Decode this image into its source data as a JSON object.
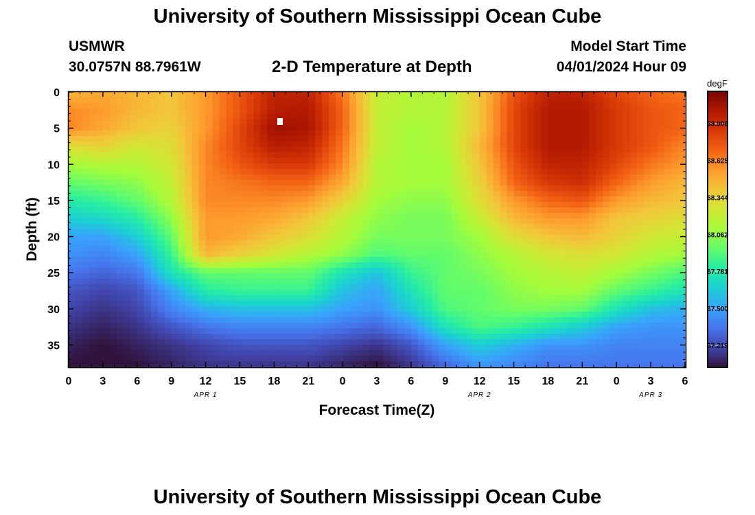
{
  "header": {
    "title": "University of Southern Mississippi Ocean Cube",
    "station_id": "USMWR",
    "coordinates": "30.0757N  88.7961W",
    "plot_title": "2-D Temperature at Depth",
    "model_start_label": "Model Start Time",
    "model_start_value": "04/01/2024 Hour 09"
  },
  "footer": {
    "title": "University of Southern Mississippi Ocean Cube"
  },
  "chart_data": {
    "type": "heatmap",
    "title": "2-D Temperature at Depth",
    "xlabel": "Forecast Time(Z)",
    "ylabel": "Depth (ft)",
    "x_unit": "hours from 04/01/2024 00Z",
    "xlim": [
      0,
      54
    ],
    "ylim": [
      0,
      38
    ],
    "x_ticks": [
      0,
      3,
      6,
      9,
      12,
      15,
      18,
      21,
      24,
      27,
      30,
      33,
      36,
      39,
      42,
      45,
      48,
      51,
      54
    ],
    "x_tick_labels": [
      "0",
      "3",
      "6",
      "9",
      "12",
      "15",
      "18",
      "21",
      "0",
      "3",
      "6",
      "9",
      "12",
      "15",
      "18",
      "21",
      "0",
      "3",
      "6"
    ],
    "y_ticks": [
      0,
      5,
      10,
      15,
      20,
      25,
      30,
      35
    ],
    "y_tick_labels": [
      "0",
      "5",
      "10",
      "15",
      "20",
      "25",
      "30",
      "35"
    ],
    "date_labels": [
      {
        "x": 12,
        "label": "APR 1"
      },
      {
        "x": 36,
        "label": "APR 2"
      },
      {
        "x": 51,
        "label": "APR 3"
      }
    ],
    "colorbar": {
      "unit": "degF",
      "min": 67.05,
      "max": 69.15,
      "tick_values": [
        67.219,
        67.5,
        67.781,
        68.062,
        68.344,
        68.625,
        68.906
      ],
      "tick_labels": [
        "67.219",
        "67.500",
        "67.781",
        "68.062",
        "68.344",
        "68.625",
        "68.906"
      ],
      "colors": [
        "#30123b",
        "#4145ab",
        "#4675ed",
        "#39a2fc",
        "#1bcfd4",
        "#24eca6",
        "#61fc6c",
        "#a4fc3b",
        "#d1e834",
        "#f3c63a",
        "#fe9b2d",
        "#f36315",
        "#d93806",
        "#b11901",
        "#7a0402"
      ]
    },
    "time_hours": [
      0,
      3,
      6,
      9,
      12,
      15,
      18,
      21,
      24,
      27,
      30,
      33,
      36,
      39,
      42,
      45,
      48,
      51,
      54
    ],
    "depth_levels_ft": [
      0,
      2.5,
      5,
      7.5,
      10,
      12.5,
      15,
      17.5,
      20,
      22.5,
      25,
      27.5,
      30,
      32.5,
      35,
      38
    ],
    "temperature_degF": [
      [
        68.45,
        68.5,
        68.45,
        68.4,
        68.55,
        68.75,
        68.95,
        68.95,
        68.65,
        68.2,
        68.15,
        68.15,
        68.4,
        68.75,
        68.95,
        68.95,
        68.8,
        68.7,
        68.65
      ],
      [
        68.6,
        68.55,
        68.45,
        68.4,
        68.55,
        68.75,
        68.98,
        69.0,
        68.7,
        68.2,
        68.15,
        68.15,
        68.4,
        68.8,
        69.0,
        69.0,
        68.85,
        68.75,
        68.7
      ],
      [
        68.6,
        68.5,
        68.4,
        68.35,
        68.55,
        68.8,
        69.05,
        69.02,
        68.7,
        68.2,
        68.1,
        68.15,
        68.4,
        68.8,
        69.0,
        69.0,
        68.85,
        68.75,
        68.7
      ],
      [
        68.3,
        68.35,
        68.25,
        68.3,
        68.6,
        68.8,
        68.98,
        68.95,
        68.65,
        68.2,
        68.1,
        68.15,
        68.45,
        68.8,
        69.0,
        69.0,
        68.85,
        68.75,
        68.6
      ],
      [
        68.1,
        68.15,
        68.15,
        68.25,
        68.6,
        68.75,
        68.85,
        68.85,
        68.6,
        68.15,
        68.1,
        68.1,
        68.4,
        68.75,
        68.95,
        68.95,
        68.8,
        68.65,
        68.55
      ],
      [
        67.95,
        68.0,
        68.05,
        68.2,
        68.6,
        68.65,
        68.7,
        68.7,
        68.5,
        68.15,
        68.1,
        68.1,
        68.35,
        68.7,
        68.85,
        68.9,
        68.7,
        68.55,
        68.45
      ],
      [
        67.8,
        67.85,
        67.95,
        68.15,
        68.6,
        68.6,
        68.6,
        68.55,
        68.35,
        68.1,
        68.05,
        68.05,
        68.3,
        68.55,
        68.7,
        68.75,
        68.55,
        68.45,
        68.4
      ],
      [
        67.65,
        67.7,
        67.8,
        68.05,
        68.55,
        68.55,
        68.5,
        68.4,
        68.2,
        68.05,
        68.0,
        68.0,
        68.2,
        68.45,
        68.55,
        68.55,
        68.4,
        68.35,
        68.3
      ],
      [
        67.5,
        67.5,
        67.65,
        67.95,
        68.55,
        68.5,
        68.4,
        68.3,
        68.15,
        68.0,
        68.0,
        68.0,
        68.1,
        68.3,
        68.4,
        68.45,
        68.35,
        68.25,
        68.2
      ],
      [
        67.45,
        67.4,
        67.5,
        67.85,
        68.45,
        68.35,
        68.25,
        68.15,
        68.05,
        67.9,
        67.95,
        67.95,
        68.05,
        68.15,
        68.25,
        68.3,
        68.25,
        68.15,
        68.1
      ],
      [
        67.35,
        67.3,
        67.35,
        67.75,
        67.95,
        67.95,
        67.95,
        67.95,
        67.75,
        67.6,
        67.85,
        67.95,
        68.0,
        68.1,
        68.15,
        68.2,
        68.1,
        68.0,
        67.9
      ],
      [
        67.25,
        67.2,
        67.25,
        67.5,
        67.8,
        67.85,
        67.85,
        67.85,
        67.6,
        67.5,
        67.75,
        67.95,
        67.95,
        68.05,
        68.1,
        68.1,
        67.95,
        67.85,
        67.75
      ],
      [
        67.2,
        67.15,
        67.2,
        67.4,
        67.55,
        67.6,
        67.6,
        67.6,
        67.5,
        67.45,
        67.65,
        67.9,
        67.95,
        68.0,
        68.0,
        67.95,
        67.75,
        67.6,
        67.55
      ],
      [
        67.15,
        67.1,
        67.15,
        67.25,
        67.35,
        67.4,
        67.4,
        67.4,
        67.35,
        67.3,
        67.45,
        67.75,
        67.9,
        67.85,
        67.75,
        67.65,
        67.5,
        67.45,
        67.45
      ],
      [
        67.1,
        67.05,
        67.1,
        67.15,
        67.2,
        67.25,
        67.25,
        67.25,
        67.2,
        67.15,
        67.25,
        67.5,
        67.65,
        67.55,
        67.45,
        67.45,
        67.4,
        67.4,
        67.4
      ],
      [
        67.05,
        67.03,
        67.05,
        67.1,
        67.15,
        67.15,
        67.15,
        67.15,
        67.1,
        67.05,
        67.15,
        67.3,
        67.45,
        67.4,
        67.35,
        67.35,
        67.35,
        67.35,
        67.35
      ]
    ]
  }
}
